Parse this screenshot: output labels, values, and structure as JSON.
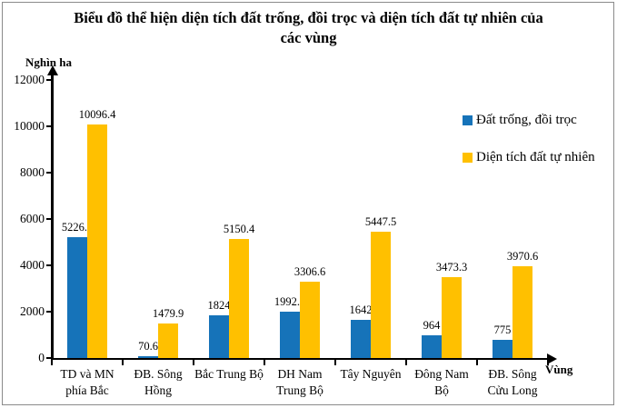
{
  "chart": {
    "title": "Biểu đồ thể hiện diện tích đất trống, đồi trọc và diện tích đất tự nhiên của các vùng",
    "y_axis_unit": "Nghìn ha",
    "x_axis_label": "Vùng"
  },
  "chart_data": {
    "type": "bar",
    "title": "Biểu đồ thể hiện diện tích đất trống, đồi trọc và diện tích đất tự nhiên của các vùng",
    "categories": [
      "TD và MN phía Bắc",
      "ĐB. Sông Hồng",
      "Bắc Trung Bộ",
      "DH Nam Trung Bộ",
      "Tây Nguyên",
      "Đông Nam Bộ",
      "ĐB. Sông Cửu Long"
    ],
    "series": [
      {
        "name": "Đất trống, đồi trọc",
        "color": "#1673B9",
        "values": [
          5226.5,
          70.6,
          1824,
          1992.7,
          1642,
          964,
          775
        ]
      },
      {
        "name": "Diện tích đất tự nhiên",
        "color": "#FFC000",
        "values": [
          10096.4,
          1479.9,
          5150.4,
          3306.6,
          5447.5,
          3473.3,
          3970.6
        ]
      }
    ],
    "xlabel": "Vùng",
    "ylabel": "Nghìn ha",
    "ylim": [
      0,
      12000
    ],
    "ytick_step": 2000,
    "grid": false,
    "legend_position": "right",
    "data_labels": true
  }
}
